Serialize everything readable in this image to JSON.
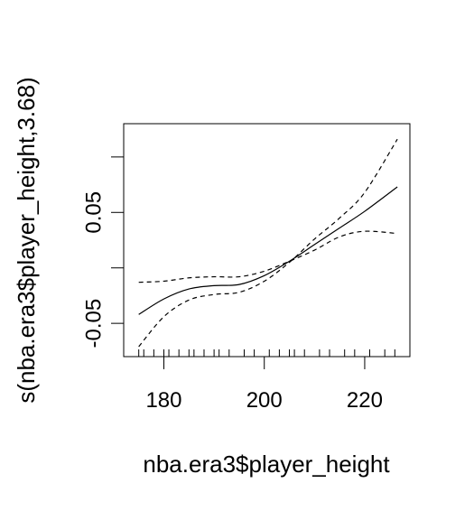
{
  "chart_data": {
    "type": "line",
    "title": "",
    "xlabel": "nba.era3$player_height",
    "ylabel": "s(nba.era3$player_height,3.68)",
    "xlim": [
      172,
      229
    ],
    "ylim": [
      -0.08,
      0.13
    ],
    "x_ticks": [
      180,
      200,
      220
    ],
    "y_ticks": [
      -0.05,
      0.0,
      0.05,
      0.1
    ],
    "y_tick_labels": [
      "-0.05",
      "",
      "0.05",
      ""
    ],
    "x": [
      175,
      180,
      185,
      190,
      195,
      200,
      205,
      210,
      215,
      220,
      226.5
    ],
    "series": [
      {
        "values": [
          -0.042,
          -0.028,
          -0.019,
          -0.016,
          -0.015,
          -0.007,
          0.006,
          0.021,
          0.036,
          0.051,
          0.073
        ],
        "style": "solid"
      },
      {
        "values": [
          -0.013,
          -0.012,
          -0.009,
          -0.008,
          -0.008,
          -0.003,
          0.006,
          0.016,
          0.028,
          0.033,
          0.031
        ],
        "style": "dashed"
      },
      {
        "values": [
          -0.071,
          -0.044,
          -0.029,
          -0.024,
          -0.022,
          -0.012,
          0.005,
          0.026,
          0.045,
          0.068,
          0.116
        ],
        "style": "dashed"
      }
    ],
    "rug": [
      175,
      176,
      178,
      180,
      181,
      183,
      185,
      186,
      188,
      190,
      191,
      193,
      196,
      198,
      201,
      203,
      205,
      206,
      208,
      211,
      213,
      216,
      218,
      221,
      224,
      226
    ],
    "grid": false,
    "legend": "none"
  }
}
